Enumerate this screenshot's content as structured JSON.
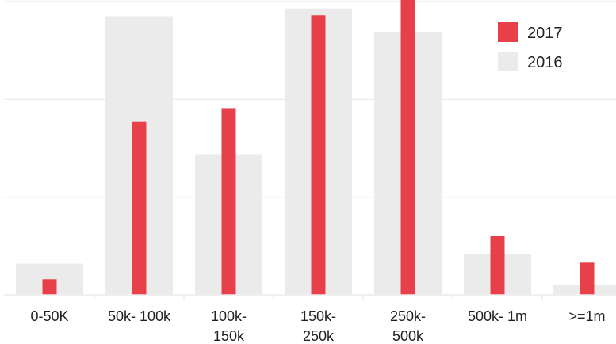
{
  "chart_data": {
    "type": "bar",
    "categories": [
      [
        "0-50K"
      ],
      [
        "50k- 100k"
      ],
      [
        "100k-",
        "150k"
      ],
      [
        "150k-",
        "250k"
      ],
      [
        "250k-",
        "500k"
      ],
      [
        "500k- 1m"
      ],
      [
        ">=1m"
      ]
    ],
    "series": [
      {
        "name": "2016",
        "color": "#ebebeb",
        "values": [
          3.2,
          28.5,
          14.4,
          29.3,
          26.9,
          4.2,
          1.0
        ]
      },
      {
        "name": "2017",
        "color": "#e8404a",
        "values": [
          1.6,
          17.7,
          19.1,
          28.6,
          30.3,
          6.0,
          3.3
        ]
      }
    ],
    "ylim": [
      0,
      30
    ],
    "gridlines": [
      0,
      10,
      20,
      30
    ],
    "grid": true,
    "legend": {
      "position": "top-right",
      "order": [
        "2017",
        "2016"
      ]
    }
  }
}
